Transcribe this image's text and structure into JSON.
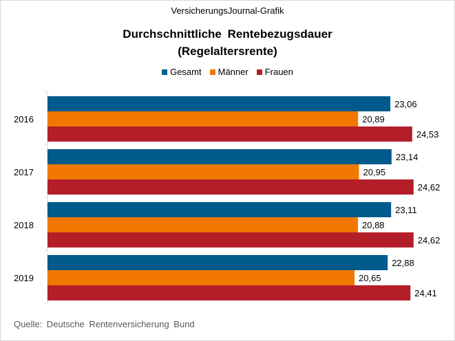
{
  "header": {
    "subtitle": "VersicherungsJournal-Grafik",
    "title_line1": "Durchschnittliche  Rentebezugsdauer",
    "title_line2": "(Regelaltersrente)"
  },
  "source": "Quelle: Deutsche Rentenversicherung  Bund",
  "colors": {
    "Gesamt": "#005a8c",
    "Männer": "#f07800",
    "Frauen": "#b41e28"
  },
  "chart_data": {
    "type": "bar",
    "orientation": "horizontal",
    "title": "Durchschnittliche Rentebezugsdauer (Regelaltersrente)",
    "categories": [
      "2016",
      "2017",
      "2018",
      "2019"
    ],
    "series": [
      {
        "name": "Gesamt",
        "values": [
          23.06,
          23.14,
          23.11,
          22.88
        ],
        "labels": [
          "23,06",
          "23,14",
          "23,11",
          "22,88"
        ]
      },
      {
        "name": "Männer",
        "values": [
          20.89,
          20.95,
          20.88,
          20.65
        ],
        "labels": [
          "20,89",
          "20,95",
          "20,88",
          "20,65"
        ]
      },
      {
        "name": "Frauen",
        "values": [
          24.53,
          24.62,
          24.62,
          24.41
        ],
        "labels": [
          "24,53",
          "24,62",
          "24,62",
          "24,41"
        ]
      }
    ],
    "xlim": [
      0,
      26
    ],
    "legend_position": "top-center",
    "grid": false
  }
}
